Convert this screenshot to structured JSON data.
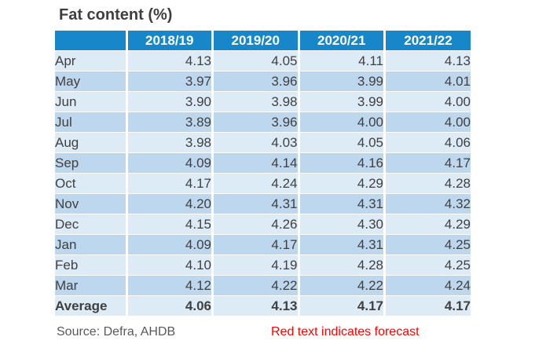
{
  "title": "Fat content (%)",
  "table": {
    "corner_label": "",
    "columns": [
      "2018/19",
      "2019/20",
      "2020/21",
      "2021/22"
    ],
    "rows": [
      {
        "label": "Apr",
        "values": [
          "4.13",
          "4.05",
          "4.11",
          "4.13"
        ],
        "forecast": [
          false,
          false,
          false,
          true
        ]
      },
      {
        "label": "May",
        "values": [
          "3.97",
          "3.96",
          "3.99",
          "4.01"
        ],
        "forecast": [
          false,
          false,
          false,
          true
        ]
      },
      {
        "label": "Jun",
        "values": [
          "3.90",
          "3.98",
          "3.99",
          "4.00"
        ],
        "forecast": [
          false,
          false,
          false,
          true
        ]
      },
      {
        "label": "Jul",
        "values": [
          "3.89",
          "3.96",
          "4.00",
          "4.00"
        ],
        "forecast": [
          false,
          false,
          false,
          true
        ]
      },
      {
        "label": "Aug",
        "values": [
          "3.98",
          "4.03",
          "4.05",
          "4.06"
        ],
        "forecast": [
          false,
          false,
          false,
          true
        ]
      },
      {
        "label": "Sep",
        "values": [
          "4.09",
          "4.14",
          "4.16",
          "4.17"
        ],
        "forecast": [
          false,
          false,
          false,
          true
        ]
      },
      {
        "label": "Oct",
        "values": [
          "4.17",
          "4.24",
          "4.29",
          "4.28"
        ],
        "forecast": [
          false,
          false,
          false,
          true
        ]
      },
      {
        "label": "Nov",
        "values": [
          "4.20",
          "4.31",
          "4.31",
          "4.32"
        ],
        "forecast": [
          false,
          false,
          false,
          true
        ]
      },
      {
        "label": "Dec",
        "values": [
          "4.15",
          "4.26",
          "4.30",
          "4.29"
        ],
        "forecast": [
          false,
          false,
          false,
          true
        ]
      },
      {
        "label": "Jan",
        "values": [
          "4.09",
          "4.17",
          "4.31",
          "4.25"
        ],
        "forecast": [
          false,
          false,
          false,
          true
        ]
      },
      {
        "label": "Feb",
        "values": [
          "4.10",
          "4.19",
          "4.28",
          "4.25"
        ],
        "forecast": [
          false,
          false,
          false,
          true
        ]
      },
      {
        "label": "Mar",
        "values": [
          "4.12",
          "4.22",
          "4.22",
          "4.24"
        ],
        "forecast": [
          false,
          false,
          true,
          true
        ]
      }
    ],
    "average_row": {
      "label": "Average",
      "values": [
        "4.06",
        "4.13",
        "4.17",
        "4.17"
      ],
      "forecast": [
        false,
        false,
        false,
        false
      ]
    }
  },
  "footer": {
    "source": "Source: Defra, AHDB",
    "note": "Red text indicates forecast"
  },
  "colors": {
    "header_blue": "#1787c9",
    "row_light_blue": "#ddebf7",
    "row_medium_blue": "#bdd7ee",
    "body_text": "#404040",
    "title_text": "#3f3f3f",
    "source_text": "#595959",
    "forecast_red": "#ff0000"
  },
  "chart_data": {
    "type": "table",
    "title": "Fat content (%)",
    "categories": [
      "Apr",
      "May",
      "Jun",
      "Jul",
      "Aug",
      "Sep",
      "Oct",
      "Nov",
      "Dec",
      "Jan",
      "Feb",
      "Mar",
      "Average"
    ],
    "series": [
      {
        "name": "2018/19",
        "values": [
          4.13,
          3.97,
          3.9,
          3.89,
          3.98,
          4.09,
          4.17,
          4.2,
          4.15,
          4.09,
          4.1,
          4.12,
          4.06
        ]
      },
      {
        "name": "2019/20",
        "values": [
          4.05,
          3.96,
          3.98,
          3.96,
          4.03,
          4.14,
          4.24,
          4.31,
          4.26,
          4.17,
          4.19,
          4.22,
          4.13
        ]
      },
      {
        "name": "2020/21",
        "values": [
          4.11,
          3.99,
          3.99,
          4.0,
          4.05,
          4.16,
          4.29,
          4.31,
          4.3,
          4.31,
          4.28,
          4.22,
          4.17
        ]
      },
      {
        "name": "2021/22",
        "values": [
          4.13,
          4.01,
          4.0,
          4.0,
          4.06,
          4.17,
          4.28,
          4.32,
          4.29,
          4.25,
          4.25,
          4.24,
          4.17
        ]
      }
    ],
    "forecast_values": {
      "2020/21": [
        "Mar"
      ],
      "2021/22": [
        "Apr",
        "May",
        "Jun",
        "Jul",
        "Aug",
        "Sep",
        "Oct",
        "Nov",
        "Dec",
        "Jan",
        "Feb",
        "Mar"
      ]
    },
    "notes": [
      "Red text indicates forecast",
      "Source: Defra, AHDB"
    ],
    "legend_position": "none",
    "grid": false
  }
}
